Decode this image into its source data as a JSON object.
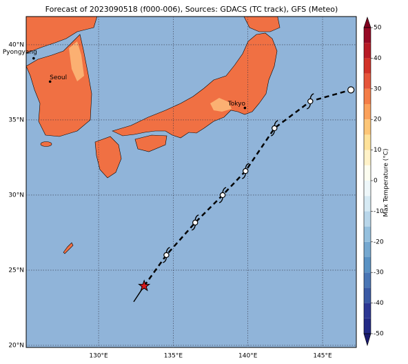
{
  "title": "Forecast of 2023090518 (f000-006), Sources: GDACS (TC track), GFS (Meteo)",
  "map": {
    "xlim": [
      125.15,
      147.26
    ],
    "ylim": [
      19.86,
      41.88
    ],
    "xticks": [
      {
        "value": 130,
        "label": "130°E"
      },
      {
        "value": 135,
        "label": "135°E"
      },
      {
        "value": 140,
        "label": "140°E"
      },
      {
        "value": 145,
        "label": "145°E"
      }
    ],
    "yticks": [
      {
        "value": 20,
        "label": "20°N"
      },
      {
        "value": 25,
        "label": "25°N"
      },
      {
        "value": 30,
        "label": "30°N"
      },
      {
        "value": 35,
        "label": "35°N"
      },
      {
        "value": 40,
        "label": "40°N"
      }
    ],
    "grid": true
  },
  "cities": [
    {
      "name": "Pyongyang",
      "lon": 125.65,
      "lat": 39.1
    },
    {
      "name": "Seoul",
      "lon": 126.75,
      "lat": 37.55
    },
    {
      "name": "Tokyo",
      "lon": 139.8,
      "lat": 35.8
    }
  ],
  "history": {
    "lon": [
      132.35,
      133.05
    ],
    "lat": [
      22.9,
      23.95
    ],
    "color": "#000000"
  },
  "track": {
    "lon": [
      133.05,
      134.54,
      136.47,
      138.31,
      139.84,
      141.78,
      144.18,
      146.9
    ],
    "lat": [
      23.95,
      26.01,
      28.17,
      30.0,
      31.6,
      34.45,
      36.24,
      37.0
    ],
    "color": "#000000",
    "start_color": "#d7191c"
  },
  "colorbar": {
    "label": "Max Temperature (°C)",
    "levels": [
      -50,
      -45,
      -40,
      -35,
      -30,
      -25,
      -20,
      -15,
      -10,
      -5,
      0,
      5,
      10,
      15,
      20,
      25,
      30,
      35,
      40,
      45,
      50
    ],
    "colors": [
      "#232a86",
      "#2c3794",
      "#3a5aa5",
      "#4a76b5",
      "#5a92c4",
      "#75a8d0",
      "#95c0de",
      "#b8d6ea",
      "#d6eaf4",
      "#eef7fa",
      "#fcfdf0",
      "#fff2c8",
      "#fee29a",
      "#fdc677",
      "#fba15b",
      "#f47d47",
      "#e6553a",
      "#d23228",
      "#b71a26",
      "#960a26"
    ],
    "under": "#1a1a6e",
    "over": "#800020",
    "ticks": [
      -50,
      -40,
      -30,
      -20,
      -10,
      0,
      10,
      20,
      30,
      40,
      50
    ]
  }
}
